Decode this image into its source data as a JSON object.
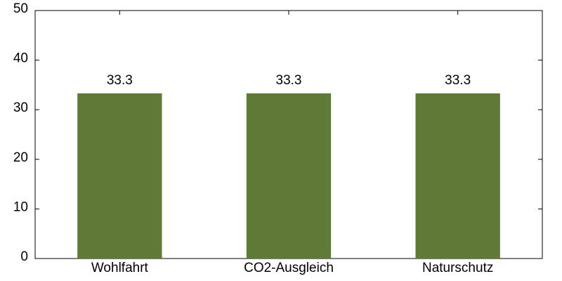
{
  "chart_data": {
    "type": "bar",
    "categories": [
      "Wohlfahrt",
      "CO2-Ausgleich",
      "Naturschutz"
    ],
    "values": [
      33.3,
      33.3,
      33.3
    ],
    "color": "#5f7a36",
    "ylim": [
      0,
      50
    ],
    "yticks": [
      0,
      10,
      20,
      30,
      40,
      50
    ],
    "data_labels": true
  }
}
